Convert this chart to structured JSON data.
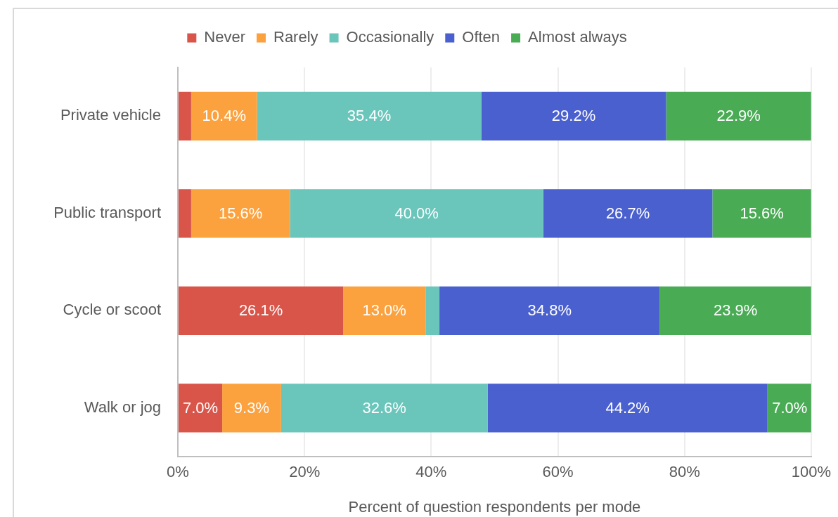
{
  "chart_data": {
    "type": "bar",
    "orientation": "horizontal",
    "stacked": true,
    "categories": [
      "Private vehicle",
      "Public transport",
      "Cycle or scoot",
      "Walk or jog"
    ],
    "series": [
      {
        "name": "Never",
        "color": "#d9554a",
        "values": [
          2.1,
          2.1,
          26.1,
          7.0
        ],
        "value_labels": [
          null,
          null,
          "26.1%",
          "7.0%"
        ]
      },
      {
        "name": "Rarely",
        "color": "#fba23f",
        "values": [
          10.4,
          15.6,
          13.0,
          9.3
        ],
        "value_labels": [
          "10.4%",
          "15.6%",
          "13.0%",
          "9.3%"
        ]
      },
      {
        "name": "Occasionally",
        "color": "#6ac5bb",
        "values": [
          35.4,
          40.0,
          2.2,
          32.6
        ],
        "value_labels": [
          "35.4%",
          "40.0%",
          null,
          "32.6%"
        ]
      },
      {
        "name": "Often",
        "color": "#4a60cf",
        "values": [
          29.2,
          26.7,
          34.8,
          44.2
        ],
        "value_labels": [
          "29.2%",
          "26.7%",
          "34.8%",
          "44.2%"
        ]
      },
      {
        "name": "Almost always",
        "color": "#4aab55",
        "values": [
          22.9,
          15.6,
          23.9,
          7.0
        ],
        "value_labels": [
          "22.9%",
          "15.6%",
          "23.9%",
          "7.0%"
        ]
      }
    ],
    "xlabel": "Percent of question respondents per mode",
    "xlim": [
      0,
      100
    ],
    "xticks": [
      {
        "value": 0,
        "label": "0%"
      },
      {
        "value": 20,
        "label": "20%"
      },
      {
        "value": 40,
        "label": "40%"
      },
      {
        "value": 60,
        "label": "60%"
      },
      {
        "value": 80,
        "label": "80%"
      },
      {
        "value": 100,
        "label": "100%"
      }
    ],
    "grid": "x",
    "legend": "top"
  }
}
